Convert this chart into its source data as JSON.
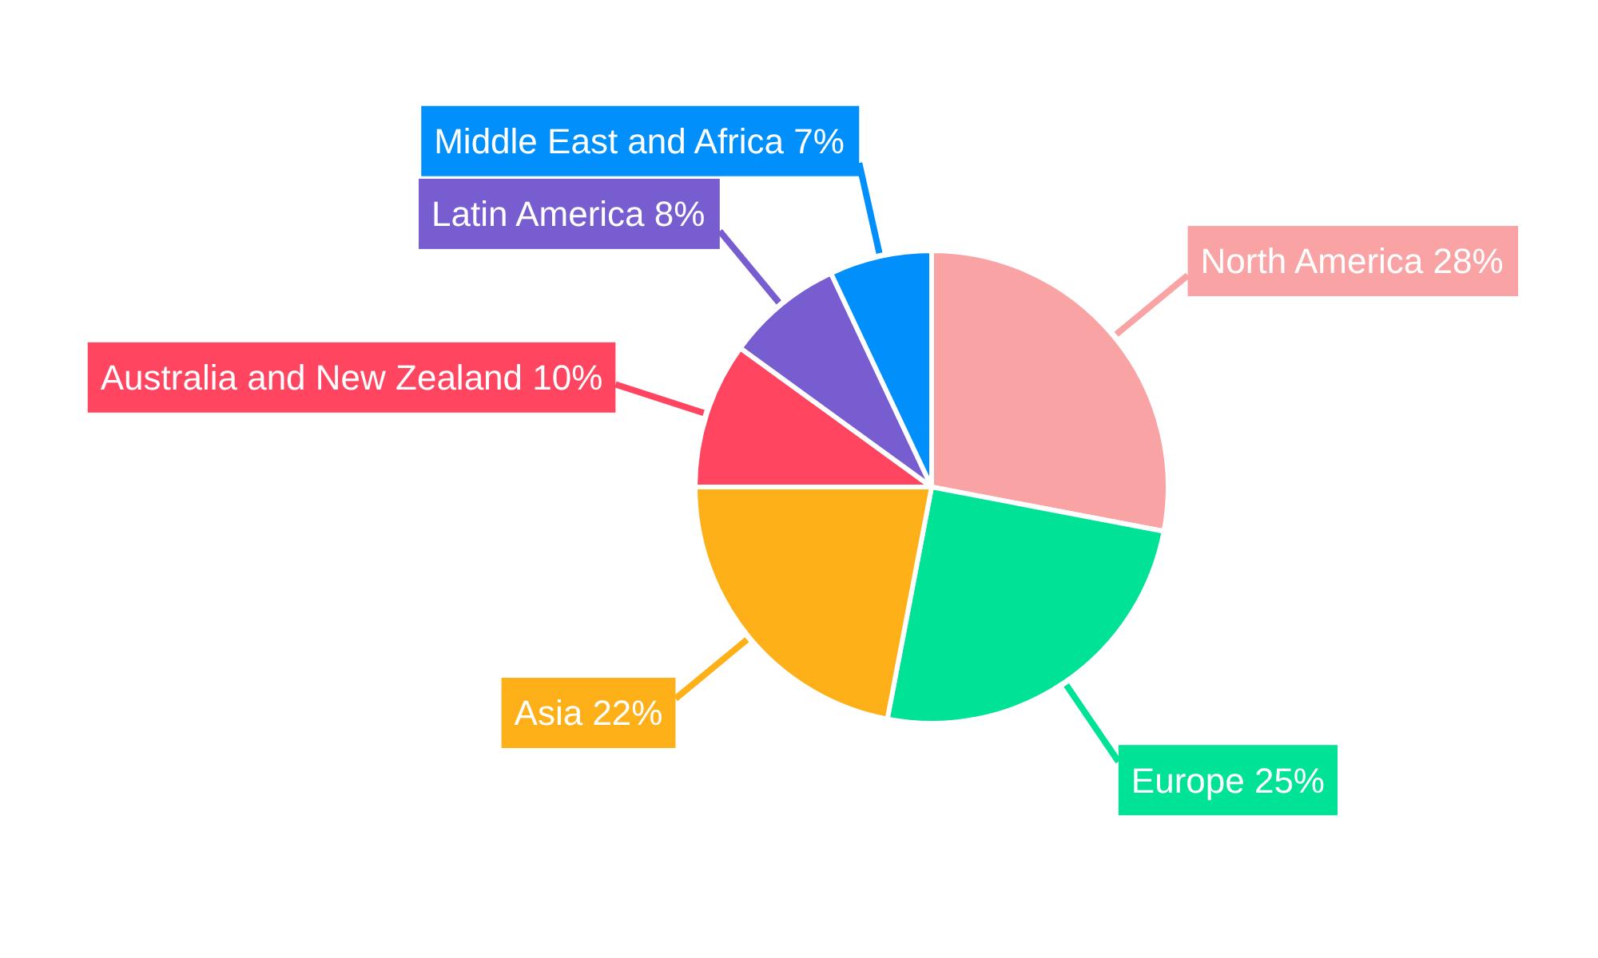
{
  "chart_data": {
    "type": "pie",
    "categories": [
      "North America",
      "Europe",
      "Asia",
      "Australia and New Zealand",
      "Latin America",
      "Middle East and Africa"
    ],
    "values": [
      28,
      25,
      22,
      10,
      8,
      7
    ],
    "colors": [
      "#f9a3a4",
      "#00e396",
      "#feb019",
      "#ff4560",
      "#775dd0",
      "#008ffb"
    ],
    "value_labels": [
      "28%",
      "25%",
      "22%",
      "10%",
      "8%",
      "7%"
    ]
  }
}
